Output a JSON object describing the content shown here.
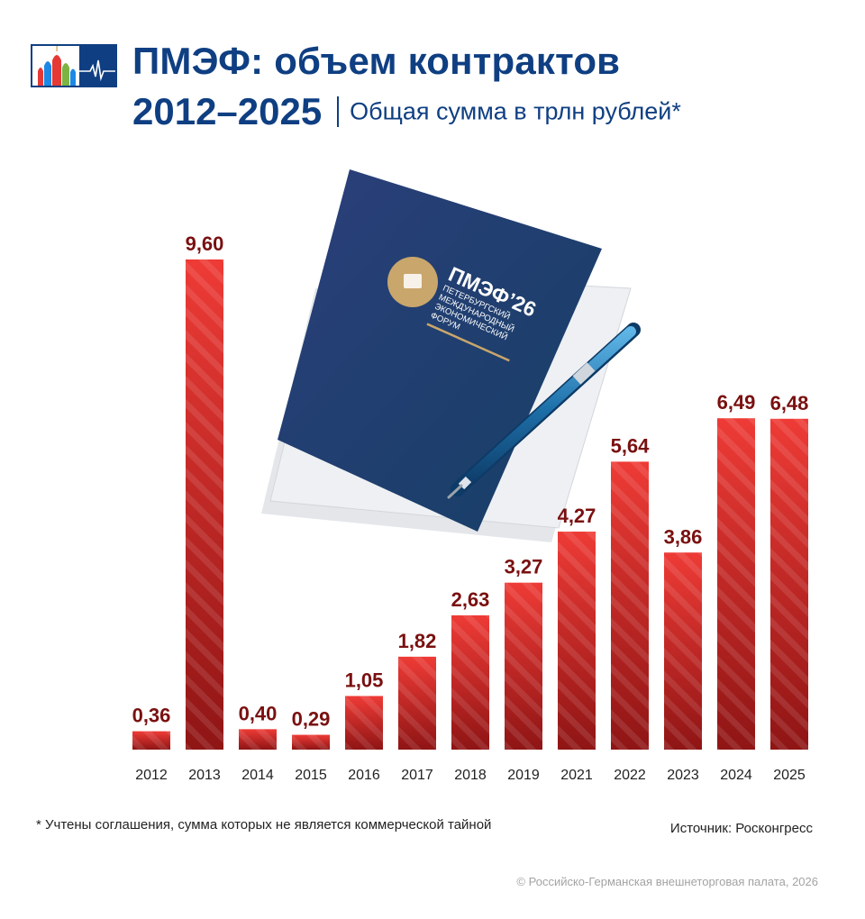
{
  "header": {
    "title_line1": "ПМЭФ: объем контрактов",
    "title_line2": "2012–2025",
    "subtitle": "Общая сумма в трлн рублей*"
  },
  "illustration": {
    "folder_title": "ПМЭФ’26",
    "folder_lines": [
      "ПЕТЕРБУРГСКИЙ",
      "МЕЖДУНАРОДНЫЙ",
      "ЭКОНОМИЧЕСКИЙ",
      "ФОРУМ"
    ]
  },
  "chart_data": {
    "type": "bar",
    "categories": [
      "2012",
      "2013",
      "2014",
      "2015",
      "2016",
      "2017",
      "2018",
      "2019",
      "2021",
      "2022",
      "2023",
      "2024",
      "2025"
    ],
    "values": [
      0.36,
      9.6,
      0.4,
      0.29,
      1.05,
      1.82,
      2.63,
      3.27,
      4.27,
      5.64,
      3.86,
      6.49,
      6.48
    ],
    "data_labels": [
      "0,36",
      "9,60",
      "0,40",
      "0,29",
      "1,05",
      "1,82",
      "2,63",
      "3,27",
      "4,27",
      "5,64",
      "3,86",
      "6,49",
      "6,48"
    ],
    "ylim": [
      0,
      9.6
    ],
    "grid": false,
    "legend": "none",
    "colors": {
      "bar_top": "#ee3b36",
      "bar_bottom": "#8f1515",
      "label": "#7a1010"
    }
  },
  "footer": {
    "footnote": "* Учтены соглашения, сумма которых не является коммерческой тайной",
    "source": "Источник: Росконгресс",
    "copyright": "© Российско-Германская внешнеторговая палата, 2026"
  }
}
